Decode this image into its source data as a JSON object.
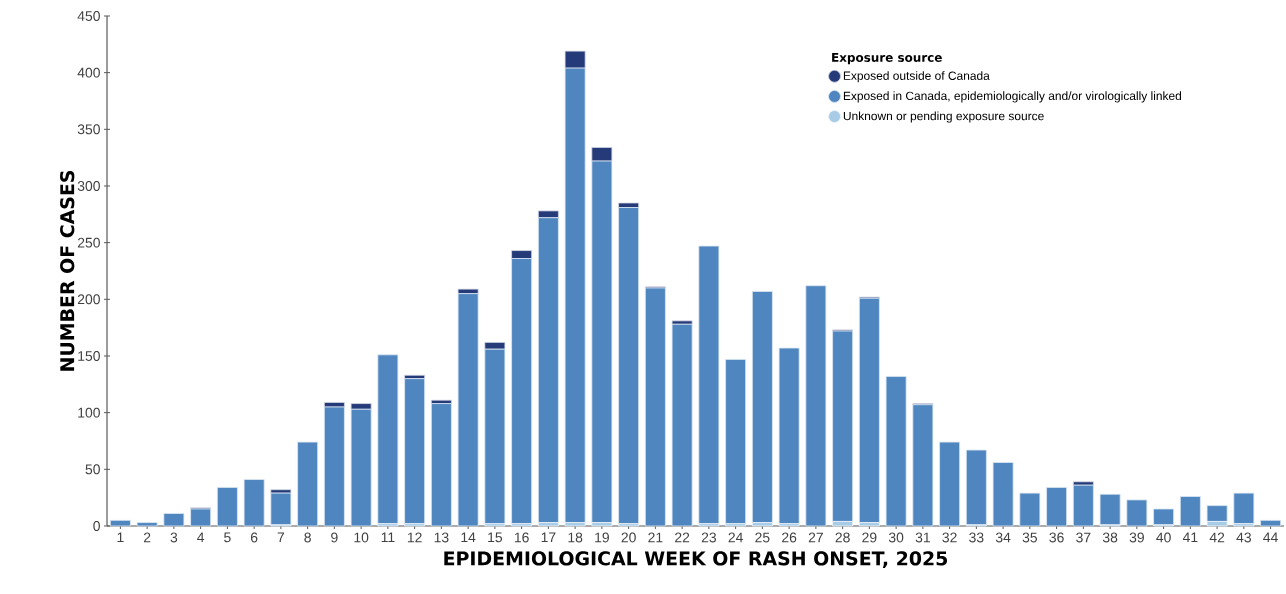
{
  "chart_data": {
    "type": "bar",
    "stacked": true,
    "xlabel": "EPIDEMIOLOGICAL WEEK OF RASH ONSET, 2025",
    "ylabel": "NUMBER OF CASES",
    "legend_title": "Exposure source",
    "legend": "top right",
    "categories": [
      "1",
      "2",
      "3",
      "4",
      "5",
      "6",
      "7",
      "8",
      "9",
      "10",
      "11",
      "12",
      "13",
      "14",
      "15",
      "16",
      "17",
      "18",
      "19",
      "20",
      "21",
      "22",
      "23",
      "24",
      "25",
      "26",
      "27",
      "28",
      "29",
      "30",
      "31",
      "32",
      "33",
      "34",
      "35",
      "36",
      "37",
      "38",
      "39",
      "40",
      "41",
      "42",
      "43",
      "44"
    ],
    "ylim": [
      0,
      450
    ],
    "yticks": [
      0,
      50,
      100,
      150,
      200,
      250,
      300,
      350,
      400,
      450
    ],
    "series": [
      {
        "name": "Unknown or pending exposure source",
        "color": "#a8cbe6",
        "values": [
          0,
          0,
          0,
          0,
          0,
          0,
          1,
          0,
          0,
          0,
          2,
          2,
          0,
          0,
          2,
          2,
          3,
          3,
          3,
          2,
          0,
          0,
          2,
          2,
          3,
          2,
          0,
          4,
          3,
          0,
          0,
          0,
          1,
          0,
          0,
          0,
          0,
          1,
          0,
          1,
          0,
          4,
          2,
          0
        ]
      },
      {
        "name": "Exposed in Canada, epidemiologically and/or virologically linked",
        "color": "#4f86c0",
        "values": [
          5,
          3,
          11,
          15,
          34,
          41,
          28,
          74,
          105,
          103,
          149,
          128,
          108,
          205,
          154,
          234,
          269,
          401,
          319,
          279,
          210,
          178,
          245,
          145,
          204,
          155,
          212,
          168,
          198,
          132,
          107,
          74,
          66,
          56,
          29,
          34,
          36,
          27,
          23,
          14,
          26,
          14,
          27,
          5
        ]
      },
      {
        "name": "Exposed outside of Canada",
        "color": "#253a78",
        "values": [
          0,
          0,
          0,
          1,
          0,
          0,
          3,
          0,
          4,
          5,
          0,
          3,
          3,
          4,
          6,
          7,
          6,
          15,
          12,
          4,
          1,
          3,
          0,
          0,
          0,
          0,
          0,
          1,
          1,
          0,
          1,
          0,
          0,
          0,
          0,
          0,
          3,
          0,
          0,
          0,
          0,
          0,
          0,
          0
        ]
      }
    ]
  }
}
